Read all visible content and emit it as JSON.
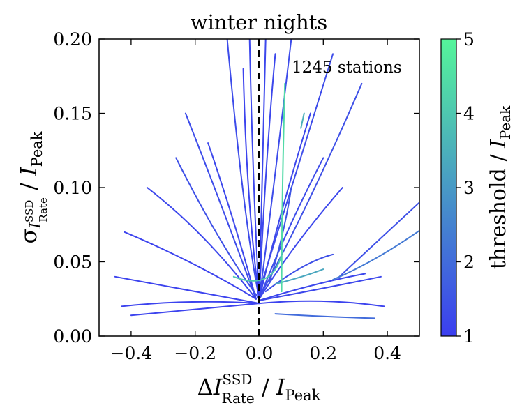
{
  "chart_data": {
    "type": "line",
    "title": "winter nights",
    "annotation": "1245 stations",
    "xlabel": {
      "prefix": "Δ",
      "var": "I",
      "sup": "SSD",
      "sub": "Rate",
      "slash": " / ",
      "den_var": "I",
      "den_sub": "Peak"
    },
    "ylabel": {
      "prefix": "σ",
      "var": "I",
      "sup": "SSD",
      "sub": "Rate",
      "slash": " / ",
      "den_var": "I",
      "den_sub": "Peak"
    },
    "xlim": [
      -0.5,
      0.5
    ],
    "ylim": [
      0.0,
      0.2
    ],
    "x_ticks": [
      -0.4,
      -0.2,
      0.0,
      0.2,
      0.4
    ],
    "x_tick_labels": [
      "−0.4",
      "−0.2",
      "0.0",
      "0.2",
      "0.4"
    ],
    "y_ticks": [
      0.0,
      0.05,
      0.1,
      0.15,
      0.2
    ],
    "y_tick_labels": [
      "0.00",
      "0.05",
      "0.10",
      "0.15",
      "0.20"
    ],
    "vline_x": 0.0,
    "colorbar": {
      "label": {
        "text": "threshold / ",
        "var": "I",
        "sub": "Peak"
      },
      "range": [
        1,
        5
      ],
      "ticks": [
        1,
        2,
        3,
        4,
        5
      ],
      "color_low": "#3b3ef0",
      "color_high": "#55f59a"
    },
    "series": [
      {
        "points": [
          [
            0.0,
            0.025
          ],
          [
            -0.05,
            0.08
          ],
          [
            -0.1,
            0.2
          ]
        ],
        "threshold": 1.3
      },
      {
        "points": [
          [
            0.0,
            0.025
          ],
          [
            -0.02,
            0.1
          ],
          [
            -0.03,
            0.2
          ]
        ],
        "threshold": 1.2
      },
      {
        "points": [
          [
            0.0,
            0.025
          ],
          [
            0.01,
            0.1
          ],
          [
            0.02,
            0.2
          ]
        ],
        "threshold": 1.2
      },
      {
        "points": [
          [
            0.0,
            0.025
          ],
          [
            0.04,
            0.09
          ],
          [
            0.1,
            0.2
          ]
        ],
        "threshold": 1.3
      },
      {
        "points": [
          [
            0.0,
            0.03
          ],
          [
            0.1,
            0.1
          ],
          [
            0.23,
            0.19
          ]
        ],
        "threshold": 1.3
      },
      {
        "points": [
          [
            0.01,
            0.03
          ],
          [
            0.16,
            0.09
          ],
          [
            0.32,
            0.17
          ]
        ],
        "threshold": 1.4
      },
      {
        "points": [
          [
            0.0,
            0.025
          ],
          [
            0.06,
            0.08
          ],
          [
            0.16,
            0.15
          ]
        ],
        "threshold": 1.2
      },
      {
        "points": [
          [
            -0.01,
            0.025
          ],
          [
            -0.12,
            0.09
          ],
          [
            -0.23,
            0.15
          ]
        ],
        "threshold": 1.3
      },
      {
        "points": [
          [
            -0.01,
            0.025
          ],
          [
            -0.17,
            0.07
          ],
          [
            -0.35,
            0.1
          ]
        ],
        "threshold": 1.2
      },
      {
        "points": [
          [
            -0.01,
            0.025
          ],
          [
            -0.2,
            0.05
          ],
          [
            -0.42,
            0.07
          ]
        ],
        "threshold": 1.1
      },
      {
        "points": [
          [
            -0.01,
            0.025
          ],
          [
            -0.08,
            0.08
          ],
          [
            -0.16,
            0.13
          ]
        ],
        "threshold": 1.2
      },
      {
        "points": [
          [
            0.0,
            0.025
          ],
          [
            0.08,
            0.07
          ],
          [
            0.2,
            0.12
          ]
        ],
        "threshold": 1.3
      },
      {
        "points": [
          [
            0.0,
            0.025
          ],
          [
            0.1,
            0.06
          ],
          [
            0.26,
            0.1
          ]
        ],
        "threshold": 1.2
      },
      {
        "points": [
          [
            0.0,
            0.025
          ],
          [
            -0.04,
            0.09
          ],
          [
            -0.05,
            0.18
          ]
        ],
        "threshold": 1.1
      },
      {
        "points": [
          [
            0.0,
            0.025
          ],
          [
            0.02,
            0.12
          ],
          [
            0.05,
            0.19
          ]
        ],
        "threshold": 1.2
      },
      {
        "points": [
          [
            0.0,
            0.025
          ],
          [
            -0.12,
            0.06
          ],
          [
            -0.26,
            0.12
          ]
        ],
        "threshold": 1.4
      },
      {
        "points": [
          [
            0.0,
            0.022
          ],
          [
            -0.2,
            0.03
          ],
          [
            -0.45,
            0.04
          ]
        ],
        "threshold": 1.1
      },
      {
        "points": [
          [
            0.0,
            0.022
          ],
          [
            -0.22,
            0.025
          ],
          [
            -0.43,
            0.02
          ]
        ],
        "threshold": 1.1
      },
      {
        "points": [
          [
            0.0,
            0.022
          ],
          [
            -0.2,
            0.018
          ],
          [
            -0.4,
            0.014
          ]
        ],
        "threshold": 1.1
      },
      {
        "points": [
          [
            0.0,
            0.024
          ],
          [
            0.2,
            0.032
          ],
          [
            0.38,
            0.04
          ]
        ],
        "threshold": 1.2
      },
      {
        "points": [
          [
            0.0,
            0.024
          ],
          [
            0.18,
            0.036
          ],
          [
            0.33,
            0.042
          ]
        ],
        "threshold": 1.2
      },
      {
        "points": [
          [
            0.0,
            0.022
          ],
          [
            0.2,
            0.026
          ],
          [
            0.39,
            0.02
          ]
        ],
        "threshold": 1.1
      },
      {
        "points": [
          [
            0.03,
            0.035
          ],
          [
            0.08,
            0.07
          ],
          [
            0.1,
            0.1
          ]
        ],
        "threshold": 1.5
      },
      {
        "points": [
          [
            0.02,
            0.03
          ],
          [
            0.14,
            0.05
          ],
          [
            0.23,
            0.055
          ]
        ],
        "threshold": 1.4
      },
      {
        "points": [
          [
            0.25,
            0.04
          ],
          [
            0.4,
            0.07
          ],
          [
            0.5,
            0.09
          ]
        ],
        "threshold": 1.4
      },
      {
        "points": [
          [
            0.23,
            0.038
          ],
          [
            0.36,
            0.05
          ],
          [
            0.5,
            0.071
          ]
        ],
        "threshold": 2.3
      },
      {
        "points": [
          [
            0.05,
            0.035
          ],
          [
            0.14,
            0.04
          ],
          [
            0.2,
            0.045
          ]
        ],
        "threshold": 3.3
      },
      {
        "points": [
          [
            0.05,
            0.015
          ],
          [
            0.2,
            0.013
          ],
          [
            0.36,
            0.012
          ]
        ],
        "threshold": 2.0
      },
      {
        "points": [
          [
            0.07,
            0.03
          ],
          [
            0.07,
            0.09
          ],
          [
            0.08,
            0.17
          ]
        ],
        "threshold": 4.4
      },
      {
        "points": [
          [
            0.13,
            0.14
          ],
          [
            0.14,
            0.15
          ]
        ],
        "threshold": 3.5
      },
      {
        "points": [
          [
            -0.08,
            0.04
          ],
          [
            0.04,
            0.03
          ],
          [
            0.07,
            0.055
          ]
        ],
        "threshold": 4.0
      }
    ]
  }
}
